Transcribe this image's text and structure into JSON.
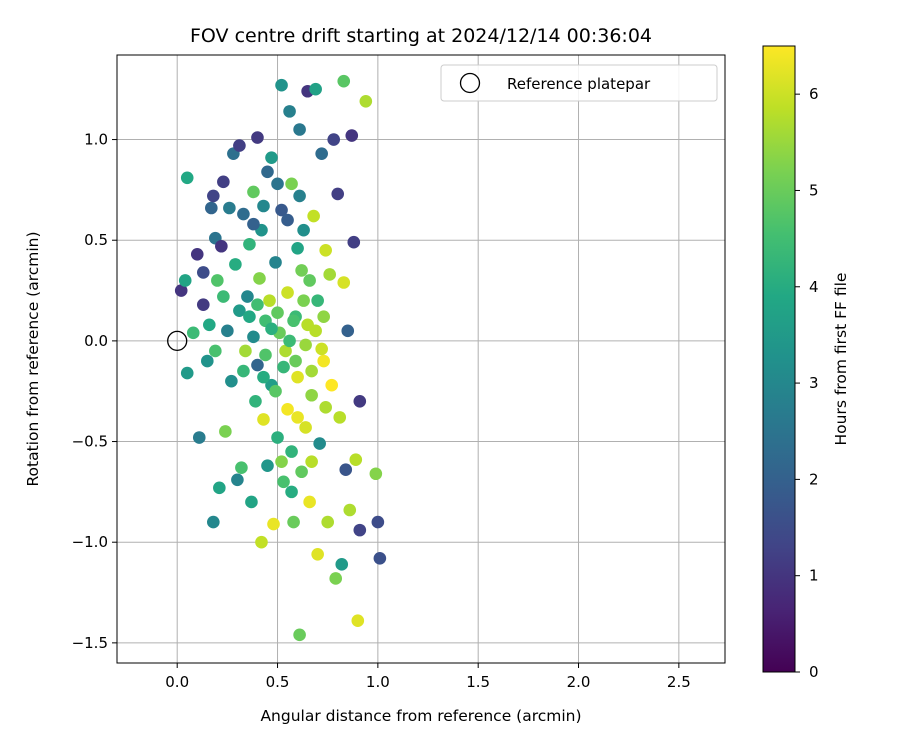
{
  "chart_data": {
    "type": "scatter",
    "title": "FOV centre drift starting at 2024/12/14 00:36:04",
    "xlabel": "Angular distance from reference (arcmin)",
    "ylabel": "Rotation from reference (arcmin)",
    "xlim": [
      -0.3,
      2.73
    ],
    "ylim": [
      -1.6,
      1.42
    ],
    "xticks": [
      0.0,
      0.5,
      1.0,
      1.5,
      2.0,
      2.5
    ],
    "xtick_labels": [
      "0.0",
      "0.5",
      "1.0",
      "1.5",
      "2.0",
      "2.5"
    ],
    "yticks": [
      -1.5,
      -1.0,
      -0.5,
      0.0,
      0.5,
      1.0
    ],
    "ytick_labels": [
      "−1.5",
      "−1.0",
      "−0.5",
      "0.0",
      "0.5",
      "1.0"
    ],
    "grid": true,
    "legend": {
      "position": "top-right",
      "entries": [
        "Reference platepar"
      ]
    },
    "reference_point": {
      "x": 0.0,
      "y": 0.0,
      "marker": "open-circle"
    },
    "colorbar": {
      "label": "Hours from first FF file",
      "colormap": "viridis",
      "range": [
        0,
        6.5
      ],
      "ticks": [
        0,
        1,
        2,
        3,
        4,
        5,
        6
      ],
      "tick_labels": [
        "0",
        "1",
        "2",
        "3",
        "4",
        "5",
        "6"
      ]
    },
    "points": [
      [
        0.02,
        0.25,
        1.0
      ],
      [
        0.04,
        0.3,
        3.8
      ],
      [
        0.05,
        0.81,
        3.9
      ],
      [
        0.05,
        -0.16,
        3.5
      ],
      [
        0.08,
        0.04,
        4.4
      ],
      [
        0.1,
        0.43,
        1.0
      ],
      [
        0.11,
        -0.48,
        2.7
      ],
      [
        0.13,
        0.18,
        1.1
      ],
      [
        0.13,
        0.34,
        1.5
      ],
      [
        0.15,
        -0.1,
        3.3
      ],
      [
        0.16,
        0.08,
        3.9
      ],
      [
        0.17,
        0.66,
        2.1
      ],
      [
        0.18,
        0.72,
        1.3
      ],
      [
        0.18,
        -0.9,
        3.0
      ],
      [
        0.19,
        0.51,
        2.5
      ],
      [
        0.19,
        -0.05,
        4.6
      ],
      [
        0.2,
        0.3,
        4.7
      ],
      [
        0.21,
        -0.73,
        3.8
      ],
      [
        0.22,
        0.47,
        1.0
      ],
      [
        0.23,
        0.22,
        4.4
      ],
      [
        0.23,
        0.79,
        1.2
      ],
      [
        0.24,
        -0.45,
        5.2
      ],
      [
        0.25,
        0.05,
        2.8
      ],
      [
        0.26,
        0.66,
        2.7
      ],
      [
        0.27,
        -0.2,
        3.2
      ],
      [
        0.28,
        0.93,
        2.4
      ],
      [
        0.29,
        0.38,
        4.0
      ],
      [
        0.3,
        -0.69,
        2.9
      ],
      [
        0.31,
        0.15,
        3.5
      ],
      [
        0.31,
        0.97,
        1.2
      ],
      [
        0.32,
        -0.63,
        4.6
      ],
      [
        0.33,
        0.63,
        2.3
      ],
      [
        0.34,
        -0.05,
        5.6
      ],
      [
        0.35,
        0.22,
        3.0
      ],
      [
        0.36,
        0.48,
        4.2
      ],
      [
        0.37,
        -0.8,
        3.8
      ],
      [
        0.38,
        0.74,
        4.9
      ],
      [
        0.38,
        0.02,
        3.1
      ],
      [
        0.39,
        -0.3,
        4.2
      ],
      [
        0.4,
        1.01,
        1.1
      ],
      [
        0.4,
        -0.12,
        2.1
      ],
      [
        0.41,
        0.31,
        5.3
      ],
      [
        0.42,
        -1.0,
        5.9
      ],
      [
        0.42,
        0.55,
        3.3
      ],
      [
        0.43,
        -0.39,
        6.2
      ],
      [
        0.44,
        0.1,
        4.5
      ],
      [
        0.45,
        0.84,
        2.2
      ],
      [
        0.45,
        -0.62,
        3.4
      ],
      [
        0.46,
        0.2,
        5.8
      ],
      [
        0.47,
        0.91,
        3.5
      ],
      [
        0.47,
        -0.22,
        3.6
      ],
      [
        0.48,
        -0.91,
        6.3
      ],
      [
        0.49,
        0.39,
        2.9
      ],
      [
        0.5,
        -0.48,
        4.1
      ],
      [
        0.51,
        0.04,
        5.0
      ],
      [
        0.52,
        0.65,
        1.8
      ],
      [
        0.52,
        1.27,
        3.3
      ],
      [
        0.53,
        -0.7,
        4.6
      ],
      [
        0.54,
        -0.05,
        5.7
      ],
      [
        0.55,
        0.24,
        6.0
      ],
      [
        0.55,
        -0.34,
        6.4
      ],
      [
        0.56,
        1.14,
        2.8
      ],
      [
        0.57,
        0.78,
        5.2
      ],
      [
        0.57,
        -0.55,
        4.2
      ],
      [
        0.58,
        -0.9,
        5.0
      ],
      [
        0.59,
        0.12,
        4.4
      ],
      [
        0.6,
        -0.18,
        6.2
      ],
      [
        0.6,
        0.46,
        3.8
      ],
      [
        0.61,
        1.05,
        2.6
      ],
      [
        0.61,
        -1.46,
        5.0
      ],
      [
        0.62,
        -0.65,
        4.9
      ],
      [
        0.63,
        0.55,
        3.2
      ],
      [
        0.64,
        -0.43,
        6.1
      ],
      [
        0.65,
        1.24,
        1.0
      ],
      [
        0.65,
        0.08,
        5.8
      ],
      [
        0.66,
        -0.8,
        6.3
      ],
      [
        0.67,
        -0.27,
        5.4
      ],
      [
        0.68,
        0.62,
        5.9
      ],
      [
        0.69,
        1.25,
        3.7
      ],
      [
        0.7,
        -1.06,
        6.2
      ],
      [
        0.7,
        0.2,
        4.3
      ],
      [
        0.71,
        -0.51,
        3.1
      ],
      [
        0.72,
        0.93,
        2.3
      ],
      [
        0.73,
        -0.1,
        6.4
      ],
      [
        0.74,
        0.45,
        6.0
      ],
      [
        0.75,
        -0.9,
        5.7
      ],
      [
        0.76,
        0.33,
        5.6
      ],
      [
        0.77,
        -0.22,
        6.5
      ],
      [
        0.78,
        1.0,
        1.3
      ],
      [
        0.79,
        -1.18,
        5.2
      ],
      [
        0.8,
        0.73,
        1.2
      ],
      [
        0.81,
        -0.38,
        5.8
      ],
      [
        0.82,
        -1.11,
        3.5
      ],
      [
        0.83,
        1.29,
        4.8
      ],
      [
        0.83,
        0.29,
        6.1
      ],
      [
        0.84,
        -0.64,
        1.7
      ],
      [
        0.85,
        0.05,
        2.0
      ],
      [
        0.86,
        -0.84,
        5.7
      ],
      [
        0.87,
        1.02,
        1.0
      ],
      [
        0.88,
        0.49,
        1.2
      ],
      [
        0.89,
        -0.59,
        5.8
      ],
      [
        0.9,
        -1.39,
        6.2
      ],
      [
        0.91,
        -0.94,
        1.3
      ],
      [
        0.91,
        -0.3,
        1.1
      ],
      [
        0.94,
        1.19,
        5.7
      ],
      [
        0.99,
        -0.66,
        5.3
      ],
      [
        1.0,
        -0.9,
        1.5
      ],
      [
        1.01,
        -1.08,
        1.6
      ],
      [
        0.33,
        -0.15,
        4.3
      ],
      [
        0.36,
        0.12,
        3.9
      ],
      [
        0.44,
        -0.07,
        4.7
      ],
      [
        0.47,
        0.06,
        4.1
      ],
      [
        0.49,
        -0.25,
        4.8
      ],
      [
        0.56,
        0.0,
        4.4
      ],
      [
        0.58,
        0.1,
        4.6
      ],
      [
        0.59,
        -0.1,
        5.0
      ],
      [
        0.63,
        0.2,
        5.2
      ],
      [
        0.64,
        -0.02,
        5.5
      ],
      [
        0.66,
        0.3,
        4.9
      ],
      [
        0.67,
        -0.15,
        5.6
      ],
      [
        0.69,
        0.05,
        5.8
      ],
      [
        0.72,
        -0.04,
        6.0
      ],
      [
        0.73,
        0.12,
        5.4
      ],
      [
        0.4,
        0.18,
        4.5
      ],
      [
        0.43,
        -0.18,
        4.0
      ],
      [
        0.5,
        0.14,
        4.9
      ],
      [
        0.53,
        -0.13,
        4.3
      ],
      [
        0.62,
        0.35,
        5.1
      ],
      [
        0.52,
        -0.6,
        5.3
      ],
      [
        0.57,
        -0.75,
        4.0
      ],
      [
        0.6,
        -0.38,
        6.3
      ],
      [
        0.67,
        -0.6,
        5.8
      ],
      [
        0.74,
        -0.33,
        5.7
      ],
      [
        0.38,
        0.58,
        2.0
      ],
      [
        0.43,
        0.67,
        3.0
      ],
      [
        0.5,
        0.78,
        2.5
      ],
      [
        0.55,
        0.6,
        1.9
      ],
      [
        0.61,
        0.72,
        2.8
      ]
    ]
  }
}
